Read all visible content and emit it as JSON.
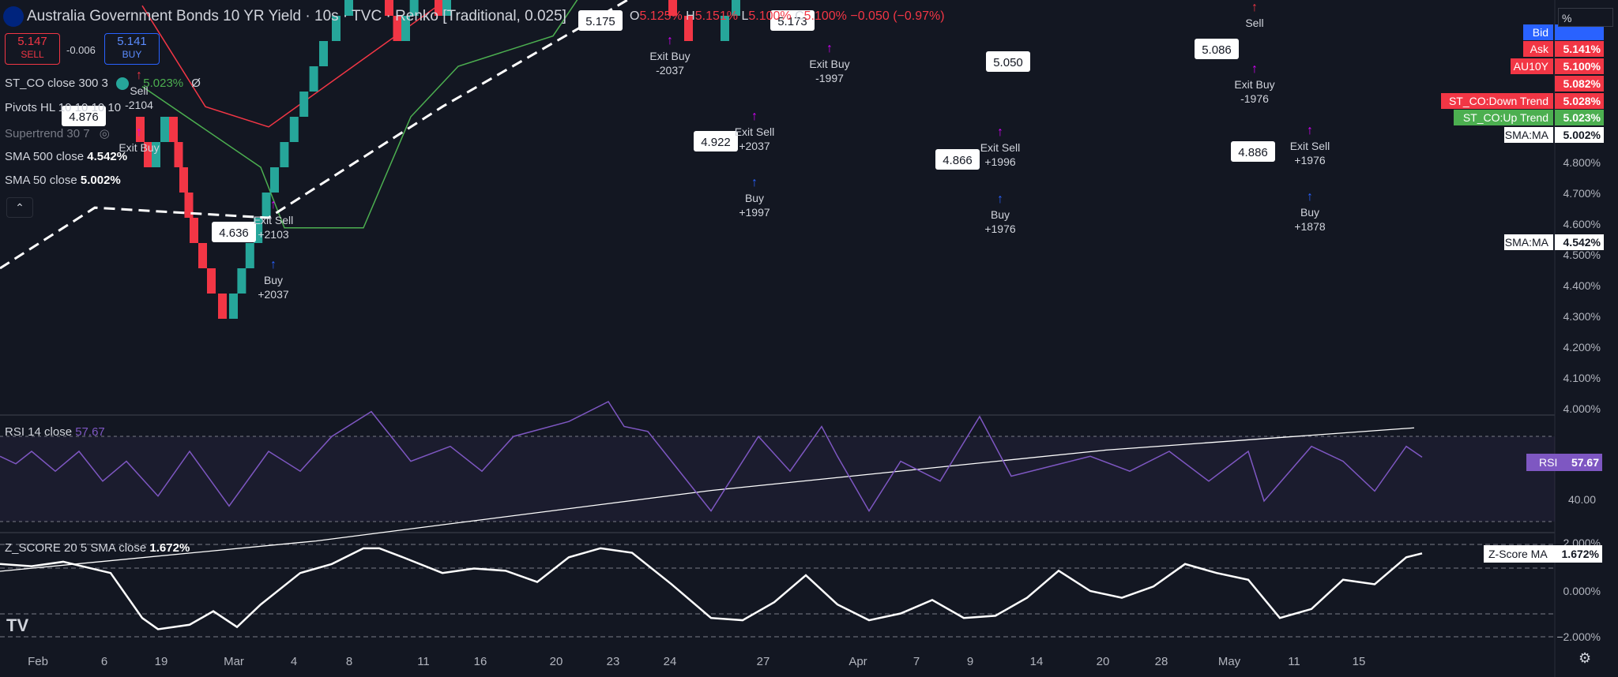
{
  "header": {
    "symbol": "Australia Government Bonds 10 YR Yield · 10s · TVC · Renko [Traditional, 0.025]",
    "o_label": "O",
    "o_value": "5.125%",
    "h_label": "H",
    "h_value": "5.151%",
    "l_label": "L",
    "l_value": "5.100%",
    "c_label": "C",
    "c_value": "5.100%",
    "change": "−0.050 (−0.97%)",
    "sell_price": "5.147",
    "sell_label": "SELL",
    "spread": "-0.006",
    "buy_price": "5.141",
    "buy_label": "BUY"
  },
  "indicators": {
    "st_co": {
      "label": "ST_CO close 300 3",
      "value": "5.023%",
      "extra": "Ø"
    },
    "pivots": {
      "label": "Pivots HL 10 10 10 10"
    },
    "supertrend": {
      "label": "Supertrend 30 7"
    },
    "sma500": {
      "label": "SMA 500 close",
      "value": "4.542%"
    },
    "sma50": {
      "label": "SMA 50 close",
      "value": "5.002%"
    },
    "rsi": {
      "label": "RSI 14 close",
      "value": "57.67"
    },
    "zscore": {
      "label": "Z_SCORE 20 5 SMA close",
      "value": "1.672%"
    }
  },
  "price_labels": [
    {
      "text": "Bid",
      "color": "#2962ff",
      "value": ""
    },
    {
      "text": "Ask",
      "color": "#f23645",
      "value": "5.141%"
    },
    {
      "text": "AU10Y",
      "color": "#f23645",
      "value": "5.100%"
    },
    {
      "text": "",
      "color": "#f23645",
      "value": "5.082%"
    },
    {
      "text": "ST_CO:Down Trend",
      "color": "#f23645",
      "value": "5.028%"
    },
    {
      "text": "ST_CO:Up Trend",
      "color": "#4caf50",
      "value": "5.023%"
    },
    {
      "text": "SMA:MA",
      "color": "#ffffff",
      "value": "5.002%"
    },
    {
      "text": "SMA:MA",
      "color": "#ffffff",
      "value": "4.542%"
    }
  ],
  "rsi_tag": {
    "text": "RSI",
    "value": "57.67",
    "color": "#7e57c2"
  },
  "zscore_tag": {
    "text": "Z-Score MA",
    "value": "1.672%"
  },
  "pct_box": "%",
  "price_axis": [
    "4.800%",
    "4.700%",
    "4.600%",
    "4.500%",
    "4.400%",
    "4.300%",
    "4.200%",
    "4.100%",
    "4.000%"
  ],
  "rsi_axis": [
    "40.00"
  ],
  "z_axis": [
    "2.000%",
    "0.000%",
    "−2.000%"
  ],
  "time_axis": [
    "Feb",
    "6",
    "19",
    "Mar",
    "4",
    "8",
    "11",
    "16",
    "20",
    "23",
    "24",
    "27",
    "Apr",
    "7",
    "9",
    "14",
    "20",
    "28",
    "May",
    "11",
    "15"
  ],
  "pivot_labels": [
    "4.876",
    "4.636",
    "5.175",
    "4.922",
    "5.173",
    "5.050",
    "4.866",
    "5.086",
    "4.886"
  ],
  "signals": [
    {
      "line1": "Sell",
      "line2": "-2104"
    },
    {
      "line1": "Exit Buy",
      "line2": ""
    },
    {
      "line1": "Exit Sell",
      "line2": "+2103"
    },
    {
      "line1": "Buy",
      "line2": "+2037"
    },
    {
      "line1": "Exit Buy",
      "line2": "-2037"
    },
    {
      "line1": "Exit Sell",
      "line2": "+2037"
    },
    {
      "line1": "Buy",
      "line2": "+1997"
    },
    {
      "line1": "Exit Buy",
      "line2": "-1997"
    },
    {
      "line1": "Exit Sell",
      "line2": "+1996"
    },
    {
      "line1": "Buy",
      "line2": "+1976"
    },
    {
      "line1": "Sell",
      "line2": ""
    },
    {
      "line1": "Exit Buy",
      "line2": "-1976"
    },
    {
      "line1": "Exit Sell",
      "line2": "+1976"
    },
    {
      "line1": "Buy",
      "line2": "+1878"
    }
  ],
  "colors": {
    "up": "#26a69a",
    "down": "#f23645",
    "bg": "#131722",
    "rsi": "#7e57c2"
  },
  "chart_data": [
    {
      "type": "renko",
      "title": "Australia Government Bonds 10 YR Yield · 10s · TVC · Renko [Traditional, 0.025]",
      "box_size": 0.025,
      "price_range": [
        4.0,
        5.2
      ],
      "x": [
        "Feb",
        "6",
        "19",
        "Mar",
        "4",
        "8",
        "11",
        "16",
        "20",
        "23",
        "24",
        "27",
        "Apr",
        "7",
        "9",
        "14",
        "20",
        "28",
        "May",
        "11",
        "15"
      ],
      "pivots": [
        4.876,
        4.636,
        5.175,
        4.922,
        5.173,
        5.05,
        4.866,
        5.086,
        4.886
      ],
      "series": [
        {
          "name": "SMA 500 close",
          "last": 4.542
        },
        {
          "name": "SMA 50 close",
          "last": 5.002
        },
        {
          "name": "ST_CO close 300 3",
          "last": 5.023
        }
      ]
    },
    {
      "type": "line",
      "title": "RSI 14 close",
      "last": 57.67,
      "ylim": [
        20,
        80
      ]
    },
    {
      "type": "line",
      "title": "Z_SCORE 20 5 SMA close",
      "last": 1.672,
      "ylim": [
        -2.5,
        2.5
      ]
    }
  ]
}
